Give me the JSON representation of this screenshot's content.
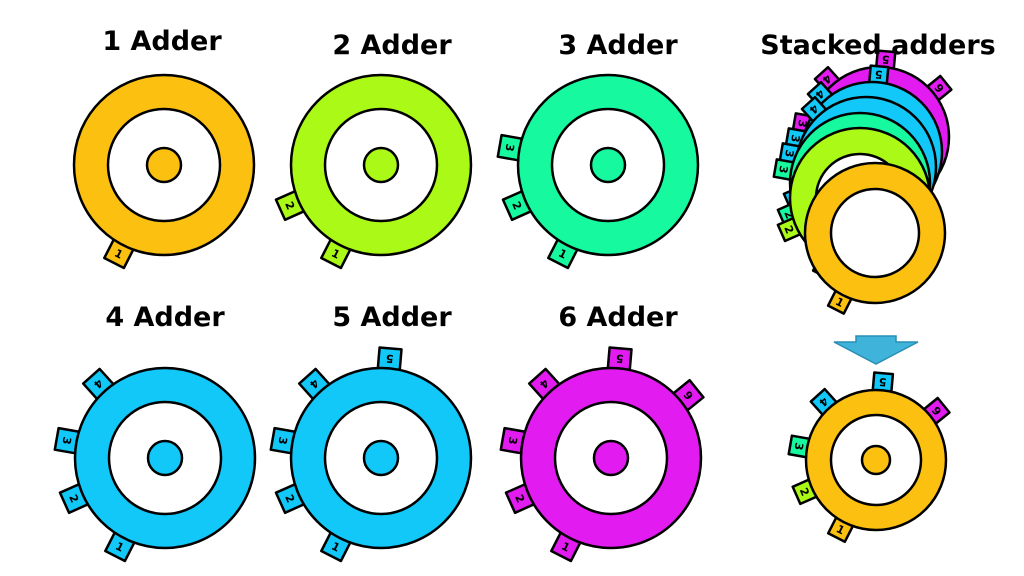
{
  "colors": {
    "orange": "#FCC110",
    "lime": "#AAF916",
    "mint": "#17F99E",
    "sky": "#11C8F8",
    "magenta": "#E21BF0",
    "arrow": "#3FB3DA",
    "outline": "#000000",
    "hole": "#FFFFFF"
  },
  "titles": {
    "adder1": "1 Adder",
    "adder2": "2 Adder",
    "adder3": "3 Adder",
    "adder4": "4 Adder",
    "adder5": "5 Adder",
    "adder6": "6 Adder",
    "stacked": "Stacked adders"
  },
  "gears": [
    {
      "id": "adder1",
      "color": "orange",
      "tabs": [
        "1"
      ]
    },
    {
      "id": "adder2",
      "color": "lime",
      "tabs": [
        "1",
        "2"
      ]
    },
    {
      "id": "adder3",
      "color": "mint",
      "tabs": [
        "1",
        "2",
        "3"
      ]
    },
    {
      "id": "adder4",
      "color": "sky",
      "tabs": [
        "1",
        "2",
        "3",
        "4"
      ]
    },
    {
      "id": "adder5",
      "color": "sky",
      "tabs": [
        "1",
        "2",
        "3",
        "4",
        "5"
      ]
    },
    {
      "id": "adder6",
      "color": "magenta",
      "tabs": [
        "1",
        "2",
        "3",
        "4",
        "5",
        "6"
      ]
    }
  ],
  "stack": {
    "layers": [
      {
        "color": "magenta",
        "tabs": [
          "1",
          "2",
          "3",
          "4",
          "5",
          "6"
        ]
      },
      {
        "color": "sky",
        "tabs": [
          "1",
          "2",
          "3",
          "4",
          "5"
        ]
      },
      {
        "color": "sky",
        "tabs": [
          "1",
          "2",
          "3",
          "4"
        ]
      },
      {
        "color": "mint",
        "tabs": [
          "1",
          "2",
          "3"
        ]
      },
      {
        "color": "lime",
        "tabs": [
          "1",
          "2"
        ]
      },
      {
        "color": "orange",
        "tabs": [
          "1"
        ]
      }
    ]
  },
  "result": {
    "ring_color": "orange",
    "tabs": [
      {
        "label": "1",
        "color": "orange"
      },
      {
        "label": "2",
        "color": "lime"
      },
      {
        "label": "3",
        "color": "mint"
      },
      {
        "label": "4",
        "color": "sky"
      },
      {
        "label": "5",
        "color": "sky"
      },
      {
        "label": "6",
        "color": "magenta"
      }
    ]
  }
}
